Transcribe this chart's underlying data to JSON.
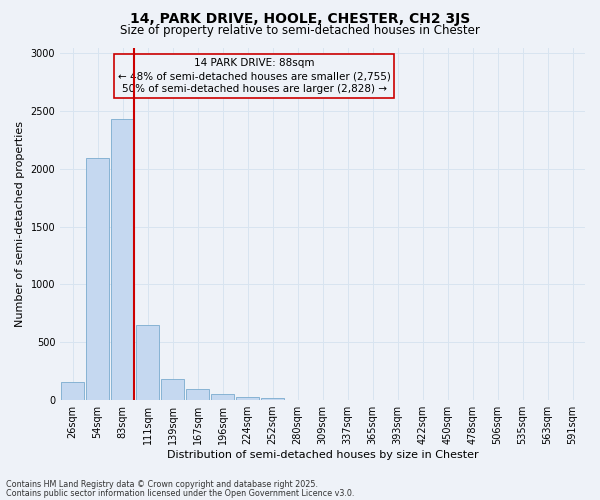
{
  "title_line1": "14, PARK DRIVE, HOOLE, CHESTER, CH2 3JS",
  "title_line2": "Size of property relative to semi-detached houses in Chester",
  "xlabel": "Distribution of semi-detached houses by size in Chester",
  "ylabel": "Number of semi-detached properties",
  "categories": [
    "26sqm",
    "54sqm",
    "83sqm",
    "111sqm",
    "139sqm",
    "167sqm",
    "196sqm",
    "224sqm",
    "252sqm",
    "280sqm",
    "309sqm",
    "337sqm",
    "365sqm",
    "393sqm",
    "422sqm",
    "450sqm",
    "478sqm",
    "506sqm",
    "535sqm",
    "563sqm",
    "591sqm"
  ],
  "values": [
    155,
    2090,
    2430,
    650,
    185,
    95,
    55,
    30,
    15,
    0,
    0,
    0,
    0,
    0,
    0,
    0,
    0,
    0,
    0,
    0,
    0
  ],
  "bar_color": "#c5d8f0",
  "bar_edge_color": "#7aabcf",
  "grid_color": "#d8e4f0",
  "property_label": "14 PARK DRIVE: 88sqm",
  "annotation_smaller": "← 48% of semi-detached houses are smaller (2,755)",
  "annotation_larger": "50% of semi-detached houses are larger (2,828) →",
  "vline_color": "#cc0000",
  "box_edge_color": "#cc0000",
  "vline_x": 2.45,
  "ylim": [
    0,
    3050
  ],
  "yticks": [
    0,
    500,
    1000,
    1500,
    2000,
    2500,
    3000
  ],
  "footnote1": "Contains HM Land Registry data © Crown copyright and database right 2025.",
  "footnote2": "Contains public sector information licensed under the Open Government Licence v3.0.",
  "background_color": "#eef2f8",
  "title1_fontsize": 10,
  "title2_fontsize": 8.5,
  "xlabel_fontsize": 8,
  "ylabel_fontsize": 8,
  "tick_fontsize": 7,
  "annot_fontsize": 7.5
}
